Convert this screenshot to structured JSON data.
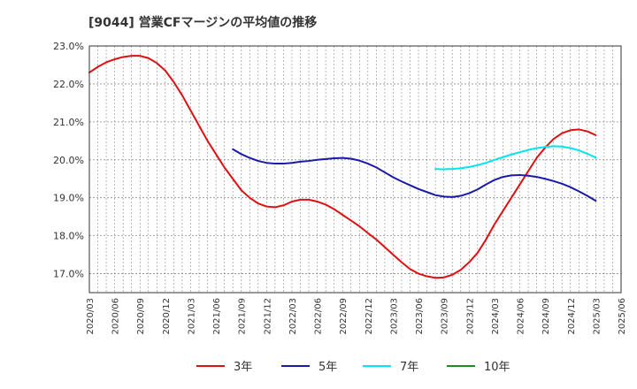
{
  "chart_data": {
    "type": "line",
    "title": "[9044]  営業CFマージンの平均値の推移",
    "xlabel": "",
    "ylabel": "",
    "ylim": [
      16.5,
      23.0
    ],
    "yticks": [
      17.0,
      18.0,
      19.0,
      20.0,
      21.0,
      22.0,
      23.0
    ],
    "ytick_labels": [
      "17.0%",
      "18.0%",
      "19.0%",
      "20.0%",
      "21.0%",
      "22.0%",
      "23.0%"
    ],
    "xlim": [
      "2020/03",
      "2025/06"
    ],
    "xtick_labels": [
      "2020/03",
      "2020/06",
      "2020/09",
      "2020/12",
      "2021/03",
      "2021/06",
      "2021/09",
      "2021/12",
      "2022/03",
      "2022/06",
      "2022/09",
      "2022/12",
      "2023/03",
      "2023/06",
      "2023/09",
      "2023/12",
      "2024/03",
      "2024/06",
      "2024/09",
      "2024/12",
      "2025/03",
      "2025/06"
    ],
    "grid": true,
    "legend_position": "bottom",
    "series": [
      {
        "name": "3年",
        "color": "#dd1111",
        "x": [
          "2020/03",
          "2020/04",
          "2020/05",
          "2020/06",
          "2020/07",
          "2020/08",
          "2020/09",
          "2020/10",
          "2020/11",
          "2020/12",
          "2021/01",
          "2021/02",
          "2021/03",
          "2021/04",
          "2021/05",
          "2021/06",
          "2021/07",
          "2021/08",
          "2021/09",
          "2021/10",
          "2021/11",
          "2021/12",
          "2022/01",
          "2022/02",
          "2022/03",
          "2022/04",
          "2022/05",
          "2022/06",
          "2022/07",
          "2022/08",
          "2022/09",
          "2022/10",
          "2022/11",
          "2022/12",
          "2023/01",
          "2023/02",
          "2023/03",
          "2023/04",
          "2023/05",
          "2023/06",
          "2023/07",
          "2023/08",
          "2023/09",
          "2023/10",
          "2023/11",
          "2023/12",
          "2024/01",
          "2024/02",
          "2024/03",
          "2024/04",
          "2024/05",
          "2024/06",
          "2024/07",
          "2024/08",
          "2024/09",
          "2024/10",
          "2024/11",
          "2024/12",
          "2025/01",
          "2025/02",
          "2025/03"
        ],
        "values": [
          22.3,
          22.45,
          22.57,
          22.65,
          22.71,
          22.74,
          22.74,
          22.68,
          22.55,
          22.35,
          22.05,
          21.7,
          21.3,
          20.9,
          20.5,
          20.15,
          19.8,
          19.5,
          19.2,
          19.0,
          18.85,
          18.77,
          18.75,
          18.8,
          18.9,
          18.95,
          18.95,
          18.9,
          18.82,
          18.7,
          18.55,
          18.4,
          18.25,
          18.07,
          17.9,
          17.7,
          17.5,
          17.3,
          17.12,
          17.0,
          16.93,
          16.89,
          16.9,
          16.97,
          17.1,
          17.3,
          17.55,
          17.9,
          18.3,
          18.65,
          19.0,
          19.35,
          19.7,
          20.05,
          20.32,
          20.55,
          20.7,
          20.78,
          20.8,
          20.75,
          20.65
        ]
      },
      {
        "name": "5年",
        "color": "#1a1aaa",
        "x": [
          "2021/08",
          "2021/09",
          "2021/10",
          "2021/11",
          "2021/12",
          "2022/01",
          "2022/02",
          "2022/03",
          "2022/04",
          "2022/05",
          "2022/06",
          "2022/07",
          "2022/08",
          "2022/09",
          "2022/10",
          "2022/11",
          "2022/12",
          "2023/01",
          "2023/02",
          "2023/03",
          "2023/04",
          "2023/05",
          "2023/06",
          "2023/07",
          "2023/08",
          "2023/09",
          "2023/10",
          "2023/11",
          "2023/12",
          "2024/01",
          "2024/02",
          "2024/03",
          "2024/04",
          "2024/05",
          "2024/06",
          "2024/07",
          "2024/08",
          "2024/09",
          "2024/10",
          "2024/11",
          "2024/12",
          "2025/01",
          "2025/02",
          "2025/03"
        ],
        "values": [
          20.28,
          20.15,
          20.05,
          19.97,
          19.92,
          19.9,
          19.9,
          19.92,
          19.95,
          19.97,
          20.0,
          20.02,
          20.04,
          20.05,
          20.03,
          19.98,
          19.9,
          19.8,
          19.67,
          19.54,
          19.43,
          19.33,
          19.23,
          19.15,
          19.07,
          19.03,
          19.02,
          19.05,
          19.12,
          19.22,
          19.35,
          19.47,
          19.55,
          19.59,
          19.6,
          19.58,
          19.55,
          19.5,
          19.44,
          19.37,
          19.28,
          19.17,
          19.05,
          18.92
        ]
      },
      {
        "name": "7年",
        "color": "#00e5ee",
        "x": [
          "2023/08",
          "2023/09",
          "2023/10",
          "2023/11",
          "2023/12",
          "2024/01",
          "2024/02",
          "2024/03",
          "2024/04",
          "2024/05",
          "2024/06",
          "2024/07",
          "2024/08",
          "2024/09",
          "2024/10",
          "2024/11",
          "2024/12",
          "2025/01",
          "2025/02",
          "2025/03"
        ],
        "values": [
          19.76,
          19.75,
          19.76,
          19.78,
          19.81,
          19.86,
          19.92,
          20.0,
          20.07,
          20.14,
          20.2,
          20.26,
          20.31,
          20.34,
          20.36,
          20.35,
          20.31,
          20.25,
          20.16,
          20.06
        ]
      },
      {
        "name": "10年",
        "color": "#228b22",
        "x": [],
        "values": []
      }
    ]
  }
}
